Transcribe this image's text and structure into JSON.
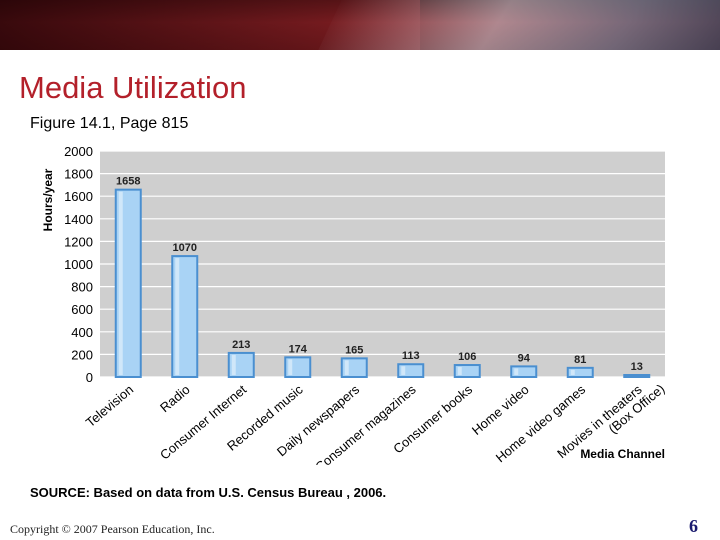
{
  "slide": {
    "title": "Media Utilization",
    "subtitle": "Figure 14.1, Page 815",
    "source": "SOURCE: Based on data from U.S. Census Bureau , 2006.",
    "copyright": "Copyright © 2007 Pearson Education, Inc.",
    "page_number": "6"
  },
  "colors": {
    "title": "#b3202a",
    "plot_bg": "#cfcfcf",
    "bar_fill": "#a9d3f5",
    "bar_edge": "#4a8fd0"
  },
  "chart_data": {
    "type": "bar",
    "title": "",
    "xlabel": "Media Channel",
    "ylabel": "Hours/year",
    "ylim": [
      0,
      2000
    ],
    "yticks": [
      0,
      200,
      400,
      600,
      800,
      1000,
      1200,
      1400,
      1600,
      1800,
      2000
    ],
    "grid": true,
    "categories": [
      "Television",
      "Radio",
      "Consumer Internet",
      "Recorded music",
      "Daily newspapers",
      "Consumer magazines",
      "Consumer books",
      "Home video",
      "Home video games",
      [
        "Movies in theaters",
        "(Box Office)"
      ]
    ],
    "values": [
      1658,
      1070,
      213,
      174,
      165,
      113,
      106,
      94,
      81,
      13
    ]
  }
}
